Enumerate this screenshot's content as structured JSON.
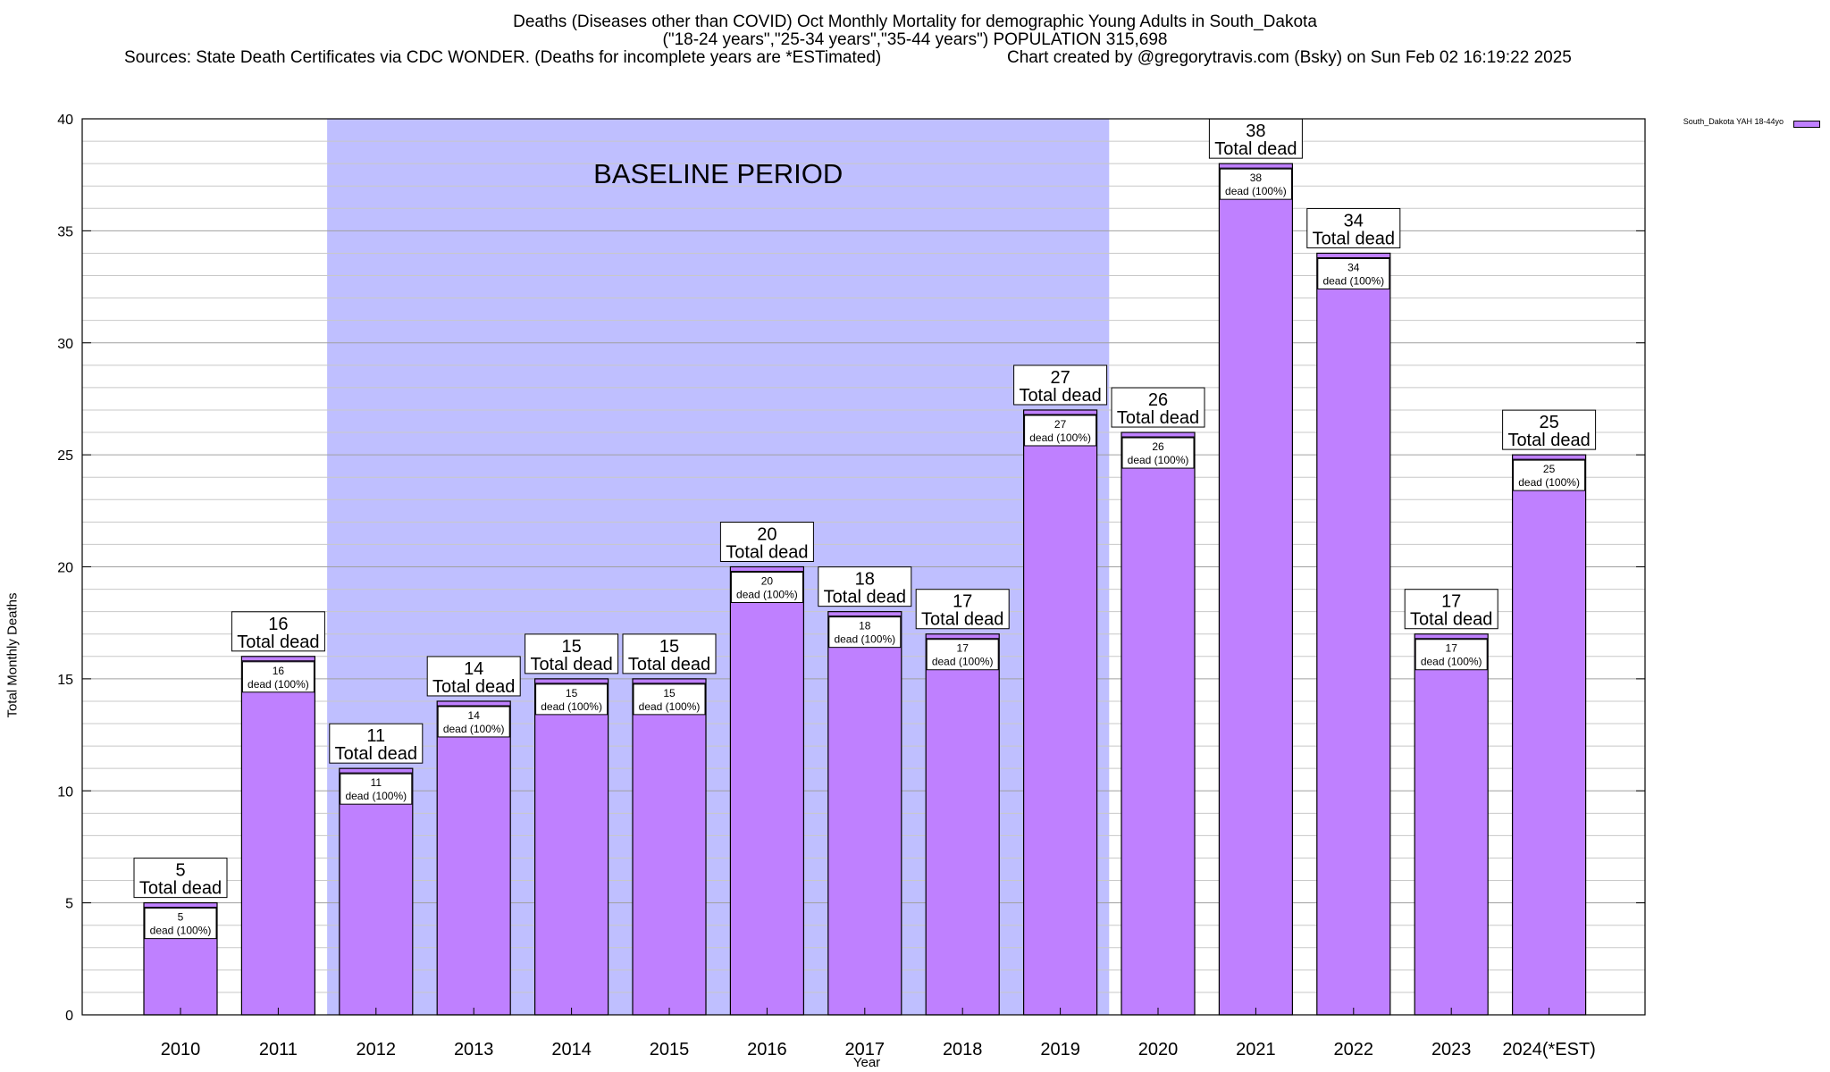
{
  "titles": {
    "line1": "Deaths (Diseases other than COVID) Oct Monthly Mortality for demographic Young Adults in South_Dakota",
    "line2": "(\"18-24 years\",\"25-34 years\",\"35-44 years\") POPULATION 315,698",
    "line3_left": "Sources: State Death Certificates via CDC WONDER. (Deaths for incomplete years are *ESTimated)",
    "line3_right": "Chart created by @gregorytravis.com (Bsky) on Sun Feb 02 16:19:22 2025"
  },
  "chart_data": {
    "type": "bar",
    "xlabel": "Year",
    "ylabel": "Total Monthly Deaths",
    "ylim": [
      0,
      40
    ],
    "yticks": [
      0,
      5,
      10,
      15,
      20,
      25,
      30,
      35,
      40
    ],
    "grid": true,
    "legend_placement": "top-right",
    "categories": [
      "2010",
      "2011",
      "2012",
      "2013",
      "2014",
      "2015",
      "2016",
      "2017",
      "2018",
      "2019",
      "2020",
      "2021",
      "2022",
      "2023",
      "2024(*EST)"
    ],
    "series": [
      {
        "name": "South_Dakota YAH 18-44yo",
        "color": "#bf80ff",
        "values": [
          5,
          16,
          11,
          14,
          15,
          15,
          20,
          18,
          17,
          27,
          26,
          38,
          34,
          17,
          25
        ]
      }
    ],
    "top_label_suffix": "Total dead",
    "inner_label_suffix": "dead (100%)",
    "baseline_period": {
      "label": "BASELINE PERIOD",
      "from": "2012",
      "to": "2019",
      "color": "#bfbfff"
    }
  }
}
